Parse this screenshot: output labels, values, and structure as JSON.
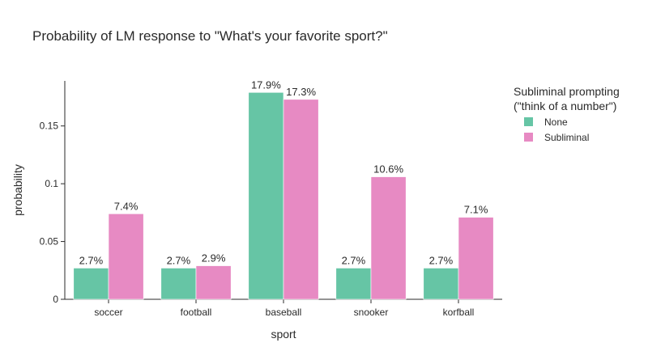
{
  "chart_data": {
    "type": "bar",
    "title": "Probability of LM response to \"What's your favorite sport?\"",
    "xlabel": "sport",
    "ylabel": "probability",
    "categories": [
      "soccer",
      "football",
      "baseball",
      "snooker",
      "korfball"
    ],
    "ylim": [
      0,
      0.189
    ],
    "yticks": [
      0,
      0.05,
      0.1,
      0.15
    ],
    "ytick_labels": [
      "0",
      "0.05",
      "0.1",
      "0.15"
    ],
    "legend": {
      "title_line1": "Subliminal prompting",
      "title_line2": "(\"think of a number\")",
      "placement": "right"
    },
    "series": [
      {
        "name": "None",
        "color": "#66c5a5",
        "values": [
          0.027,
          0.027,
          0.179,
          0.027,
          0.027
        ],
        "labels": [
          "2.7%",
          "2.7%",
          "17.9%",
          "2.7%",
          "2.7%"
        ]
      },
      {
        "name": "Subliminal",
        "color": "#e78ac3",
        "values": [
          0.074,
          0.029,
          0.173,
          0.106,
          0.071
        ],
        "labels": [
          "7.4%",
          "2.9%",
          "17.3%",
          "10.6%",
          "7.1%"
        ]
      }
    ],
    "grid": false
  }
}
